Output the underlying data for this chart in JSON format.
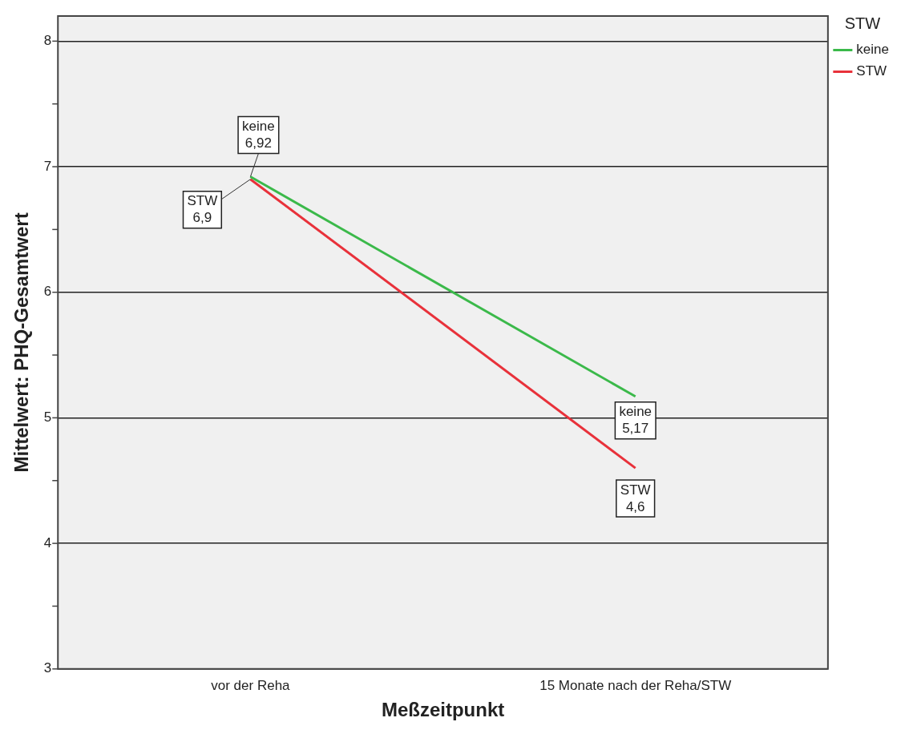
{
  "chart_data": {
    "type": "line",
    "xlabel": "Meßzeitpunkt",
    "ylabel": "Mittelwert: PHQ-Gesamtwert",
    "legend_title": "STW",
    "categories": [
      "vor der Reha",
      "15 Monate nach der Reha/STW"
    ],
    "series": [
      {
        "name": "keine",
        "color": "#3bb94a",
        "values": [
          6.92,
          5.17
        ],
        "value_labels": [
          "6,92",
          "5,17"
        ]
      },
      {
        "name": "STW",
        "color": "#e8313a",
        "values": [
          6.9,
          4.6
        ],
        "value_labels": [
          "6,9",
          "4,6"
        ]
      }
    ],
    "ylim": [
      3,
      8.2
    ],
    "yticks": [
      3,
      {
        "value": 3.5,
        "label": null
      },
      4,
      {
        "value": 4.5,
        "label": null
      },
      5,
      {
        "value": 5.5,
        "label": null
      },
      6,
      {
        "value": 6.5,
        "label": null
      },
      7,
      {
        "value": 7.5,
        "label": null
      },
      8
    ],
    "grid": "y",
    "legend": "top right",
    "marker": "none",
    "line_style": "solid"
  }
}
